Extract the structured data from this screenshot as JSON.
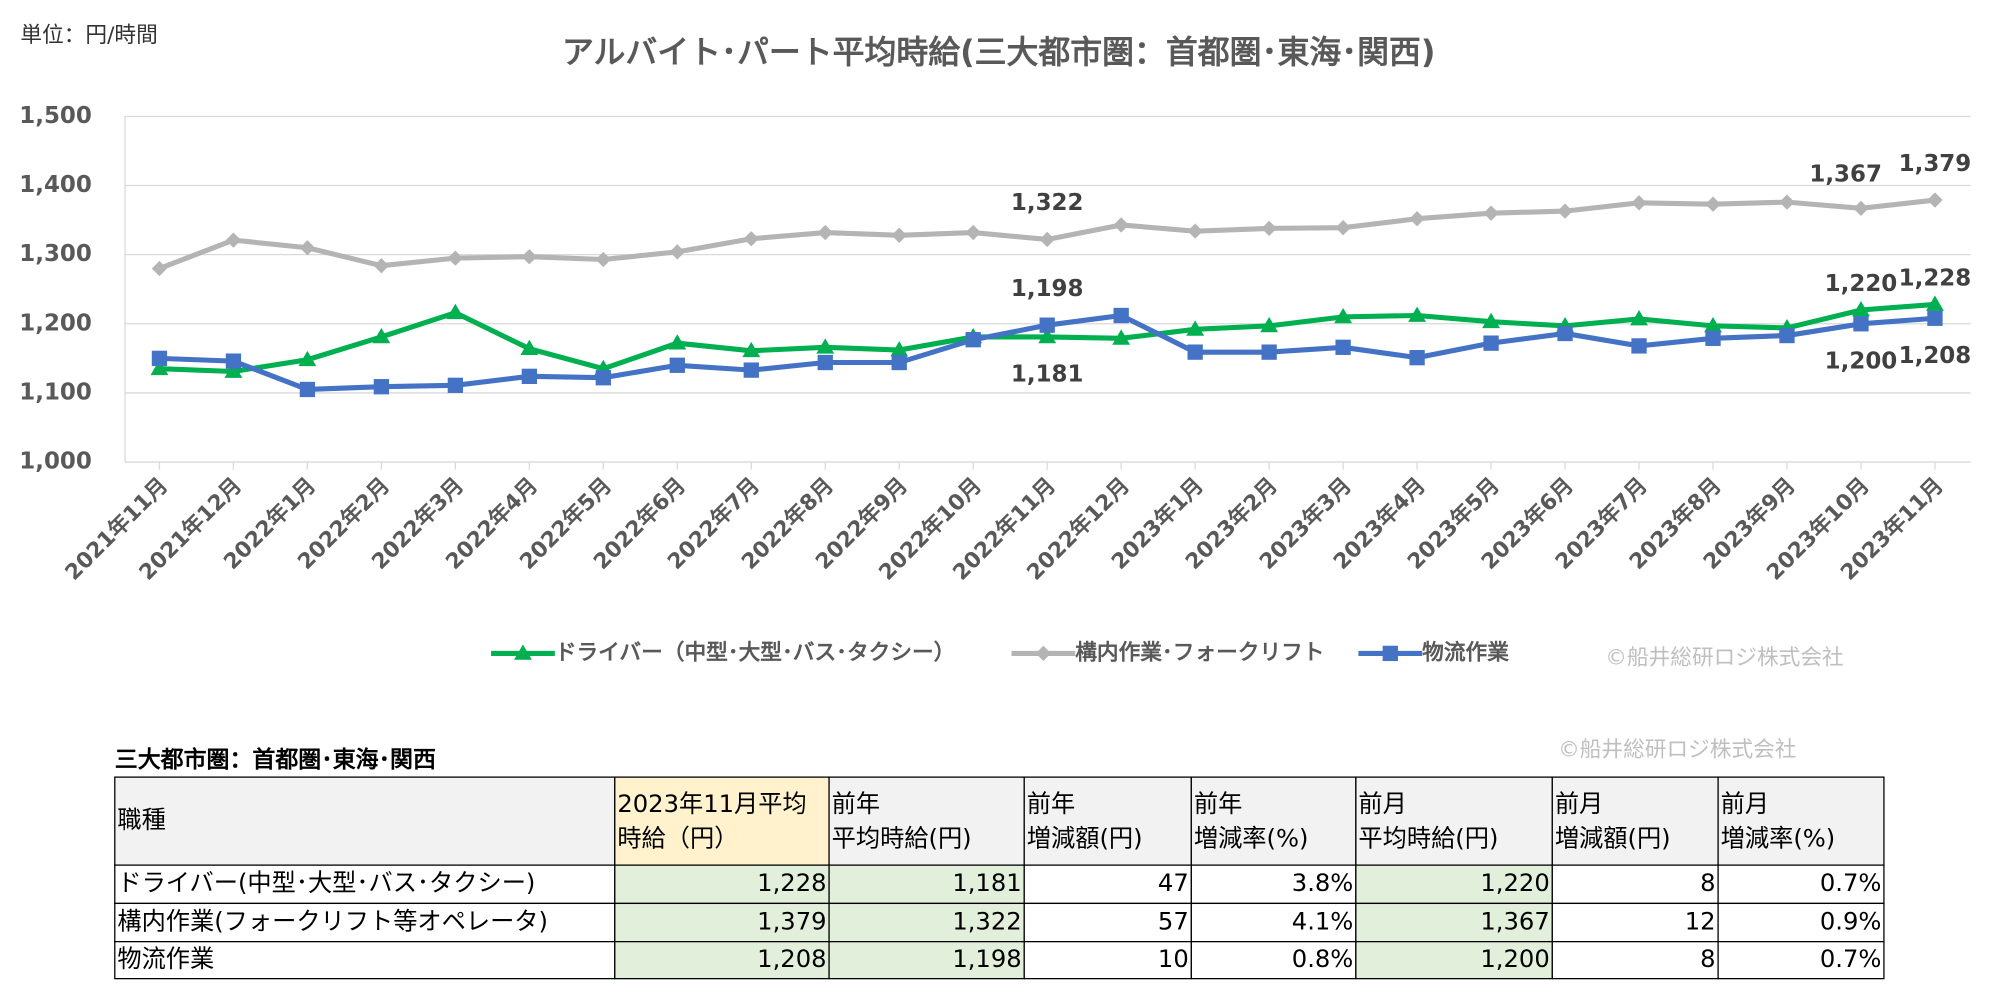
{
  "chart_data": {
    "type": "line",
    "title": "アルバイト･パート平均時給(三大都市圏：首都圏･東海･関西)",
    "unit": "単位：円/時間",
    "watermark": "©船井総研ロジ株式会社",
    "categories": [
      "2021年11月",
      "2021年12月",
      "2022年1月",
      "2022年2月",
      "2022年3月",
      "2022年4月",
      "2022年5月",
      "2022年6月",
      "2022年7月",
      "2022年8月",
      "2022年9月",
      "2022年10月",
      "2022年11月",
      "2022年12月",
      "2023年1月",
      "2023年2月",
      "2023年3月",
      "2023年4月",
      "2023年5月",
      "2023年6月",
      "2023年7月",
      "2023年8月",
      "2023年9月",
      "2023年10月",
      "2023年11月"
    ],
    "series": [
      {
        "name": "ドライバー（中型･大型･バス･タクシー）",
        "color": "#00b050",
        "marker": "triangle",
        "values": [
          1135,
          1131,
          1148,
          1181,
          1216,
          1164,
          1135,
          1172,
          1161,
          1166,
          1162,
          1181,
          1181,
          1179,
          1192,
          1197,
          1210,
          1212,
          1203,
          1197,
          1207,
          1197,
          1194,
          1220,
          1228
        ],
        "value_labels": [
          null,
          null,
          null,
          null,
          null,
          null,
          null,
          null,
          null,
          null,
          null,
          null,
          "1,181",
          null,
          null,
          null,
          null,
          null,
          null,
          null,
          null,
          null,
          null,
          "1,220",
          "1,228"
        ]
      },
      {
        "name": "構内作業･フォークリフト",
        "color": "#b4b4b4",
        "marker": "diamond",
        "values": [
          1280,
          1321,
          1310,
          1284,
          1295,
          1297,
          1293,
          1304,
          1323,
          1332,
          1328,
          1332,
          1322,
          1343,
          1334,
          1338,
          1339,
          1352,
          1360,
          1363,
          1375,
          1373,
          1376,
          1367,
          1379
        ],
        "value_labels": [
          null,
          null,
          null,
          null,
          null,
          null,
          null,
          null,
          null,
          null,
          null,
          null,
          "1,322",
          null,
          null,
          null,
          null,
          null,
          null,
          null,
          null,
          null,
          null,
          "1,367",
          "1,379"
        ]
      },
      {
        "name": "物流作業",
        "color": "#4472c4",
        "marker": "square",
        "values": [
          1150,
          1146,
          1105,
          1109,
          1111,
          1124,
          1122,
          1140,
          1133,
          1144,
          1144,
          1177,
          1198,
          1212,
          1159,
          1159,
          1166,
          1151,
          1172,
          1186,
          1168,
          1179,
          1183,
          1200,
          1208
        ],
        "value_labels": [
          null,
          null,
          null,
          null,
          null,
          null,
          null,
          null,
          null,
          null,
          null,
          null,
          "1,198",
          null,
          null,
          null,
          null,
          null,
          null,
          null,
          null,
          null,
          null,
          "1,200",
          "1,208"
        ]
      }
    ],
    "ylim": [
      1000,
      1500
    ],
    "yticks": [
      {
        "value": 1000,
        "label": "1,000"
      },
      {
        "value": 1100,
        "label": "1,100"
      },
      {
        "value": 1200,
        "label": "1,200"
      },
      {
        "value": 1300,
        "label": "1,300"
      },
      {
        "value": 1400,
        "label": "1,400"
      },
      {
        "value": 1500,
        "label": "1,500"
      }
    ],
    "grid": true,
    "legend": "bottom"
  },
  "table": {
    "title": "三大都市圏：首都圏･東海･関西",
    "watermark": "©船井総研ロジ株式会社",
    "header": [
      [
        "職種"
      ],
      [
        "2023年11月平均",
        "時給（円）"
      ],
      [
        "前年",
        "平均時給(円)"
      ],
      [
        "前年",
        "増減額(円)"
      ],
      [
        "前年",
        "増減率(%)"
      ],
      [
        "前月",
        "平均時給(円)"
      ],
      [
        "前月",
        "増減額(円)"
      ],
      [
        "前月",
        "増減率(%)"
      ]
    ],
    "rows": [
      [
        "ドライバー(中型･大型･バス･タクシー)",
        "1,228",
        "1,181",
        "47",
        "3.8%",
        "1,220",
        "8",
        "0.7%"
      ],
      [
        "構内作業(フォークリフト等オペレータ)",
        "1,379",
        "1,322",
        "57",
        "4.1%",
        "1,367",
        "12",
        "0.9%"
      ],
      [
        "物流作業",
        "1,208",
        "1,198",
        "10",
        "0.8%",
        "1,200",
        "8",
        "0.7%"
      ]
    ]
  }
}
